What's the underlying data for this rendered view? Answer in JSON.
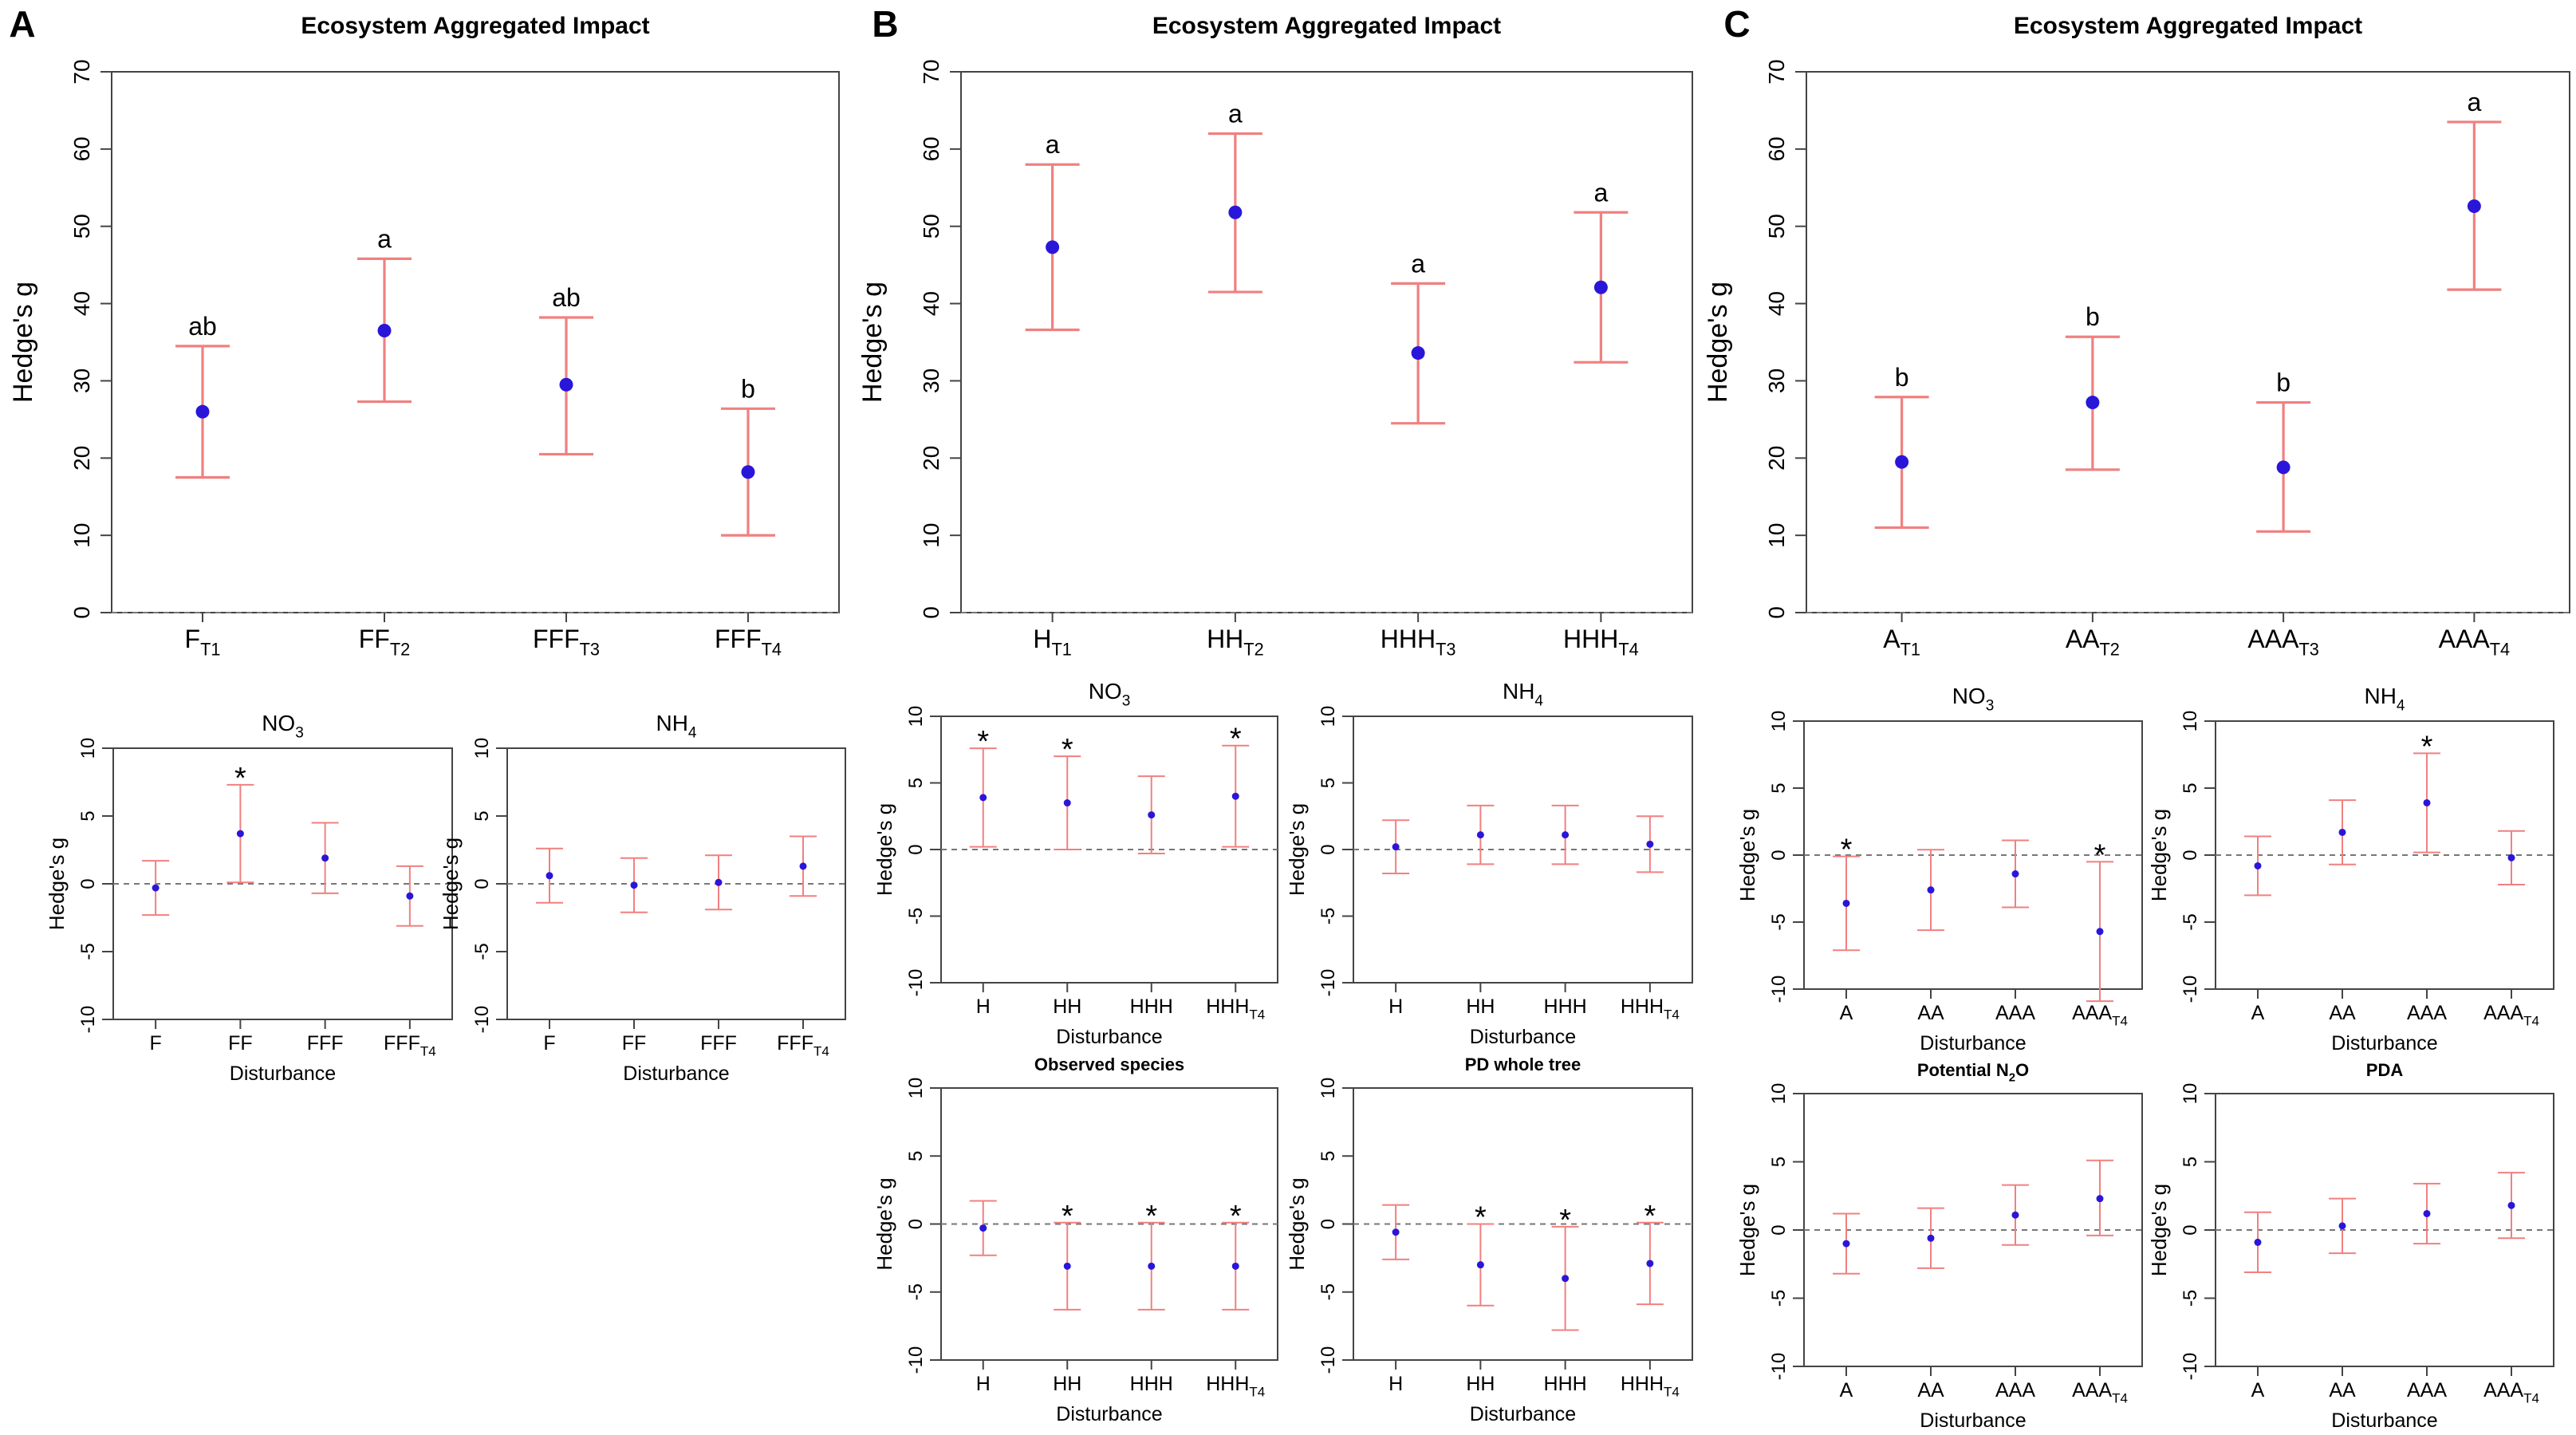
{
  "colors": {
    "errorbar": "#f08080",
    "point": "#2a16d8",
    "axis": "#444444",
    "zeroline": "#777777"
  },
  "chart_data": [
    {
      "panel": "A",
      "kind": "main",
      "type": "scatter",
      "title": "Ecosystem Aggregated Impact",
      "ylabel": "Hedge's g",
      "xlabel": "",
      "ylim": [
        0,
        70
      ],
      "yticks": [
        0,
        10,
        20,
        30,
        40,
        50,
        60,
        70
      ],
      "categories": [
        {
          "base": "F",
          "sub": "T1"
        },
        {
          "base": "FF",
          "sub": "T2"
        },
        {
          "base": "FFF",
          "sub": "T3"
        },
        {
          "base": "FFF",
          "sub": "T4"
        }
      ],
      "points": [
        {
          "y": 26,
          "lo": 17.5,
          "hi": 34.5,
          "label": "ab"
        },
        {
          "y": 36.5,
          "lo": 27.3,
          "hi": 45.8,
          "label": "a"
        },
        {
          "y": 29.5,
          "lo": 20.5,
          "hi": 38.2,
          "label": "ab"
        },
        {
          "y": 18.2,
          "lo": 10,
          "hi": 26.4,
          "label": "b"
        }
      ]
    },
    {
      "panel": "B",
      "kind": "main",
      "type": "scatter",
      "title": "Ecosystem Aggregated Impact",
      "ylabel": "Hedge's g",
      "xlabel": "",
      "ylim": [
        0,
        70
      ],
      "yticks": [
        0,
        10,
        20,
        30,
        40,
        50,
        60,
        70
      ],
      "categories": [
        {
          "base": "H",
          "sub": "T1"
        },
        {
          "base": "HH",
          "sub": "T2"
        },
        {
          "base": "HHH",
          "sub": "T3"
        },
        {
          "base": "HHH",
          "sub": "T4"
        }
      ],
      "points": [
        {
          "y": 47.3,
          "lo": 36.6,
          "hi": 58,
          "label": "a"
        },
        {
          "y": 51.8,
          "lo": 41.5,
          "hi": 62,
          "label": "a"
        },
        {
          "y": 33.6,
          "lo": 24.5,
          "hi": 42.6,
          "label": "a"
        },
        {
          "y": 42.1,
          "lo": 32.4,
          "hi": 51.8,
          "label": "a"
        }
      ]
    },
    {
      "panel": "C",
      "kind": "main",
      "type": "scatter",
      "title": "Ecosystem Aggregated Impact",
      "ylabel": "Hedge's g",
      "xlabel": "",
      "ylim": [
        0,
        70
      ],
      "yticks": [
        0,
        10,
        20,
        30,
        40,
        50,
        60,
        70
      ],
      "categories": [
        {
          "base": "A",
          "sub": "T1"
        },
        {
          "base": "AA",
          "sub": "T2"
        },
        {
          "base": "AAA",
          "sub": "T3"
        },
        {
          "base": "AAA",
          "sub": "T4"
        }
      ],
      "points": [
        {
          "y": 19.5,
          "lo": 11,
          "hi": 27.9,
          "label": "b"
        },
        {
          "y": 27.2,
          "lo": 18.5,
          "hi": 35.7,
          "label": "b"
        },
        {
          "y": 18.8,
          "lo": 10.5,
          "hi": 27.2,
          "label": "b"
        },
        {
          "y": 52.6,
          "lo": 41.8,
          "hi": 63.5,
          "label": "a"
        }
      ]
    },
    {
      "panel": "A",
      "kind": "sub",
      "type": "scatter",
      "title": {
        "base": "NO",
        "sub": "3"
      },
      "title_bold": false,
      "ylabel": "Hedge's g",
      "xlabel": "Disturbance",
      "ylim": [
        -10,
        10
      ],
      "yticks": [
        -10,
        -5,
        0,
        5,
        10
      ],
      "categories": [
        {
          "base": "F",
          "sub": ""
        },
        {
          "base": "FF",
          "sub": ""
        },
        {
          "base": "FFF",
          "sub": ""
        },
        {
          "base": "FFF",
          "sub": "T4"
        }
      ],
      "points": [
        {
          "y": -0.3,
          "lo": -2.3,
          "hi": 1.7,
          "label": ""
        },
        {
          "y": 3.7,
          "lo": 0.1,
          "hi": 7.3,
          "label": "*"
        },
        {
          "y": 1.9,
          "lo": -0.7,
          "hi": 4.5,
          "label": ""
        },
        {
          "y": -0.9,
          "lo": -3.1,
          "hi": 1.3,
          "label": ""
        }
      ]
    },
    {
      "panel": "A",
      "kind": "sub",
      "type": "scatter",
      "title": {
        "base": "NH",
        "sub": "4"
      },
      "title_bold": false,
      "ylabel": "Hedge's g",
      "xlabel": "Disturbance",
      "ylim": [
        -10,
        10
      ],
      "yticks": [
        -10,
        -5,
        0,
        5,
        10
      ],
      "categories": [
        {
          "base": "F",
          "sub": ""
        },
        {
          "base": "FF",
          "sub": ""
        },
        {
          "base": "FFF",
          "sub": ""
        },
        {
          "base": "FFF",
          "sub": "T4"
        }
      ],
      "points": [
        {
          "y": 0.6,
          "lo": -1.4,
          "hi": 2.6,
          "label": ""
        },
        {
          "y": -0.1,
          "lo": -2.1,
          "hi": 1.9,
          "label": ""
        },
        {
          "y": 0.1,
          "lo": -1.9,
          "hi": 2.1,
          "label": ""
        },
        {
          "y": 1.3,
          "lo": -0.9,
          "hi": 3.5,
          "label": ""
        }
      ]
    },
    {
      "panel": "B",
      "kind": "sub",
      "type": "scatter",
      "title": {
        "base": "NO",
        "sub": "3"
      },
      "title_bold": false,
      "ylabel": "Hedge's g",
      "xlabel": "Disturbance",
      "ylim": [
        -10,
        10
      ],
      "yticks": [
        -10,
        -5,
        0,
        5,
        10
      ],
      "categories": [
        {
          "base": "H",
          "sub": ""
        },
        {
          "base": "HH",
          "sub": ""
        },
        {
          "base": "HHH",
          "sub": ""
        },
        {
          "base": "HHH",
          "sub": "T4"
        }
      ],
      "points": [
        {
          "y": 3.9,
          "lo": 0.2,
          "hi": 7.6,
          "label": "*"
        },
        {
          "y": 3.5,
          "lo": 0,
          "hi": 7,
          "label": "*"
        },
        {
          "y": 2.6,
          "lo": -0.3,
          "hi": 5.5,
          "label": ""
        },
        {
          "y": 4,
          "lo": 0.2,
          "hi": 7.8,
          "label": "*"
        }
      ]
    },
    {
      "panel": "B",
      "kind": "sub",
      "type": "scatter",
      "title": {
        "base": "NH",
        "sub": "4"
      },
      "title_bold": false,
      "ylabel": "Hedge's g",
      "xlabel": "Disturbance",
      "ylim": [
        -10,
        10
      ],
      "yticks": [
        -10,
        -5,
        0,
        5,
        10
      ],
      "categories": [
        {
          "base": "H",
          "sub": ""
        },
        {
          "base": "HH",
          "sub": ""
        },
        {
          "base": "HHH",
          "sub": ""
        },
        {
          "base": "HHH",
          "sub": "T4"
        }
      ],
      "points": [
        {
          "y": 0.2,
          "lo": -1.8,
          "hi": 2.2,
          "label": ""
        },
        {
          "y": 1.1,
          "lo": -1.1,
          "hi": 3.3,
          "label": ""
        },
        {
          "y": 1.1,
          "lo": -1.1,
          "hi": 3.3,
          "label": ""
        },
        {
          "y": 0.4,
          "lo": -1.7,
          "hi": 2.5,
          "label": ""
        }
      ]
    },
    {
      "panel": "B",
      "kind": "sub",
      "type": "scatter",
      "title": {
        "base": "Observed species",
        "sub": ""
      },
      "title_bold": true,
      "ylabel": "Hedge's g",
      "xlabel": "Disturbance",
      "ylim": [
        -10,
        10
      ],
      "yticks": [
        -10,
        -5,
        0,
        5,
        10
      ],
      "categories": [
        {
          "base": "H",
          "sub": ""
        },
        {
          "base": "HH",
          "sub": ""
        },
        {
          "base": "HHH",
          "sub": ""
        },
        {
          "base": "HHH",
          "sub": "T4"
        }
      ],
      "points": [
        {
          "y": -0.3,
          "lo": -2.3,
          "hi": 1.7,
          "label": ""
        },
        {
          "y": -3.1,
          "lo": -6.3,
          "hi": 0.1,
          "label": "*"
        },
        {
          "y": -3.1,
          "lo": -6.3,
          "hi": 0.1,
          "label": "*"
        },
        {
          "y": -3.1,
          "lo": -6.3,
          "hi": 0.1,
          "label": "*"
        }
      ]
    },
    {
      "panel": "B",
      "kind": "sub",
      "type": "scatter",
      "title": {
        "base": "PD whole tree",
        "sub": ""
      },
      "title_bold": true,
      "ylabel": "Hedge's g",
      "xlabel": "Disturbance",
      "ylim": [
        -10,
        10
      ],
      "yticks": [
        -10,
        -5,
        0,
        5,
        10
      ],
      "categories": [
        {
          "base": "H",
          "sub": ""
        },
        {
          "base": "HH",
          "sub": ""
        },
        {
          "base": "HHH",
          "sub": ""
        },
        {
          "base": "HHH",
          "sub": "T4"
        }
      ],
      "points": [
        {
          "y": -0.6,
          "lo": -2.6,
          "hi": 1.4,
          "label": ""
        },
        {
          "y": -3,
          "lo": -6,
          "hi": 0,
          "label": "*"
        },
        {
          "y": -4,
          "lo": -7.8,
          "hi": -0.2,
          "label": "*"
        },
        {
          "y": -2.9,
          "lo": -5.9,
          "hi": 0.1,
          "label": "*"
        }
      ]
    },
    {
      "panel": "C",
      "kind": "sub",
      "type": "scatter",
      "title": {
        "base": "NO",
        "sub": "3"
      },
      "title_bold": false,
      "ylabel": "Hedge's g",
      "xlabel": "Disturbance",
      "ylim": [
        -10,
        10
      ],
      "yticks": [
        -10,
        -5,
        0,
        5,
        10
      ],
      "categories": [
        {
          "base": "A",
          "sub": ""
        },
        {
          "base": "AA",
          "sub": ""
        },
        {
          "base": "AAA",
          "sub": ""
        },
        {
          "base": "AAA",
          "sub": "T4"
        }
      ],
      "points": [
        {
          "y": -3.6,
          "lo": -7.1,
          "hi": -0.1,
          "label": "*"
        },
        {
          "y": -2.6,
          "lo": -5.6,
          "hi": 0.4,
          "label": ""
        },
        {
          "y": -1.4,
          "lo": -3.9,
          "hi": 1.1,
          "label": ""
        },
        {
          "y": -5.7,
          "lo": -10.9,
          "hi": -0.5,
          "label": "*"
        }
      ]
    },
    {
      "panel": "C",
      "kind": "sub",
      "type": "scatter",
      "title": {
        "base": "NH",
        "sub": "4"
      },
      "title_bold": false,
      "ylabel": "Hedge's g",
      "xlabel": "Disturbance",
      "ylim": [
        -10,
        10
      ],
      "yticks": [
        -10,
        -5,
        0,
        5,
        10
      ],
      "categories": [
        {
          "base": "A",
          "sub": ""
        },
        {
          "base": "AA",
          "sub": ""
        },
        {
          "base": "AAA",
          "sub": ""
        },
        {
          "base": "AAA",
          "sub": "T4"
        }
      ],
      "points": [
        {
          "y": -0.8,
          "lo": -3,
          "hi": 1.4,
          "label": ""
        },
        {
          "y": 1.7,
          "lo": -0.7,
          "hi": 4.1,
          "label": ""
        },
        {
          "y": 3.9,
          "lo": 0.2,
          "hi": 7.6,
          "label": "*"
        },
        {
          "y": -0.2,
          "lo": -2.2,
          "hi": 1.8,
          "label": ""
        }
      ]
    },
    {
      "panel": "C",
      "kind": "sub",
      "type": "scatter",
      "title": {
        "base": "Potential N",
        "sub": "2",
        "tail": "O"
      },
      "title_bold": true,
      "ylabel": "Hedge's g",
      "xlabel": "Disturbance",
      "ylim": [
        -10,
        10
      ],
      "yticks": [
        -10,
        -5,
        0,
        5,
        10
      ],
      "categories": [
        {
          "base": "A",
          "sub": ""
        },
        {
          "base": "AA",
          "sub": ""
        },
        {
          "base": "AAA",
          "sub": ""
        },
        {
          "base": "AAA",
          "sub": "T4"
        }
      ],
      "points": [
        {
          "y": -1,
          "lo": -3.2,
          "hi": 1.2,
          "label": ""
        },
        {
          "y": -0.6,
          "lo": -2.8,
          "hi": 1.6,
          "label": ""
        },
        {
          "y": 1.1,
          "lo": -1.1,
          "hi": 3.3,
          "label": ""
        },
        {
          "y": 2.3,
          "lo": -0.4,
          "hi": 5.1,
          "label": ""
        }
      ]
    },
    {
      "panel": "C",
      "kind": "sub",
      "type": "scatter",
      "title": {
        "base": "PDA",
        "sub": ""
      },
      "title_bold": true,
      "ylabel": "Hedge's g",
      "xlabel": "Disturbance",
      "ylim": [
        -10,
        10
      ],
      "yticks": [
        -10,
        -5,
        0,
        5,
        10
      ],
      "categories": [
        {
          "base": "A",
          "sub": ""
        },
        {
          "base": "AA",
          "sub": ""
        },
        {
          "base": "AAA",
          "sub": ""
        },
        {
          "base": "AAA",
          "sub": "T4"
        }
      ],
      "points": [
        {
          "y": -0.9,
          "lo": -3.1,
          "hi": 1.3,
          "label": ""
        },
        {
          "y": 0.3,
          "lo": -1.7,
          "hi": 2.3,
          "label": ""
        },
        {
          "y": 1.2,
          "lo": -1,
          "hi": 3.4,
          "label": ""
        },
        {
          "y": 1.8,
          "lo": -0.6,
          "hi": 4.2,
          "label": ""
        }
      ]
    }
  ]
}
